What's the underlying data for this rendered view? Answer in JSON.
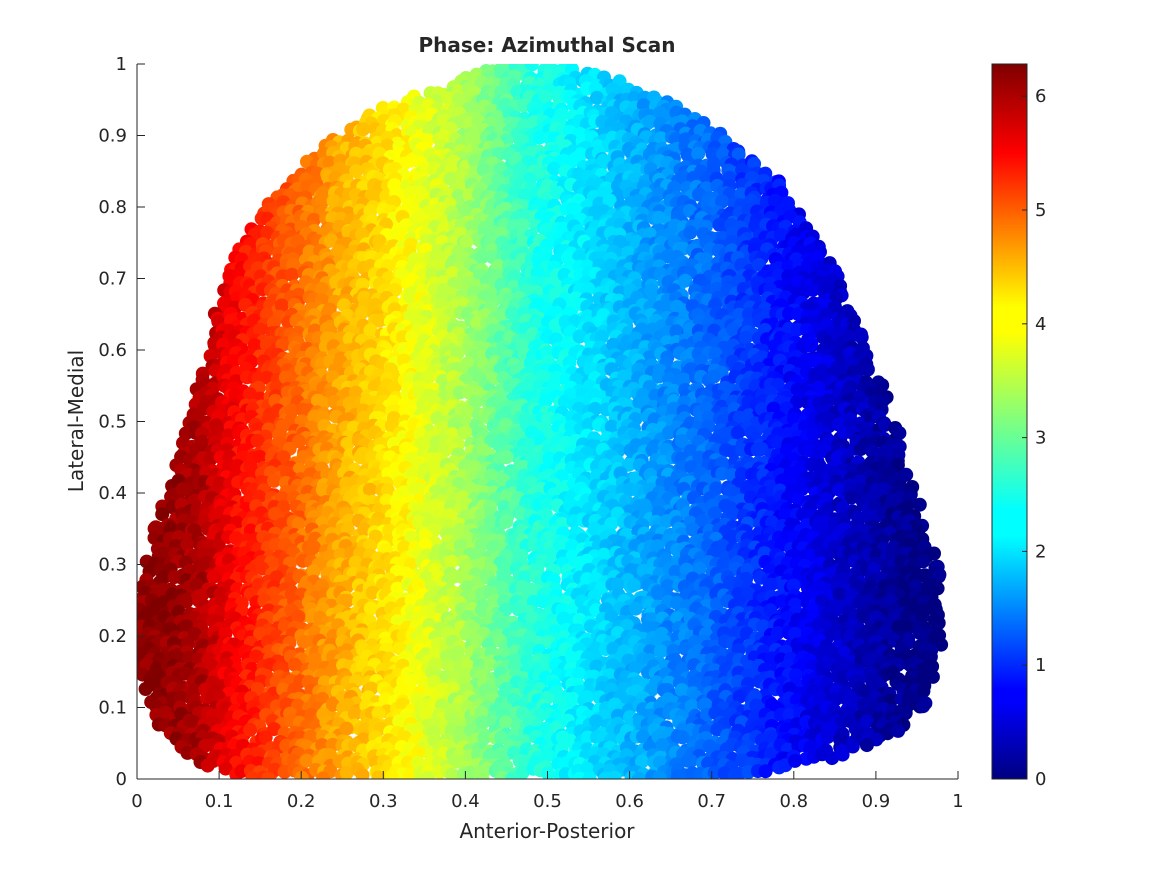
{
  "chart_data": {
    "type": "scatter",
    "title": "Phase: Azimuthal Scan",
    "xlabel": "Anterior-Posterior",
    "ylabel": "Lateral-Medial",
    "xlim": [
      0,
      1
    ],
    "ylim": [
      0,
      1
    ],
    "xticks": [
      "0",
      "0.1",
      "0.2",
      "0.3",
      "0.4",
      "0.5",
      "0.6",
      "0.7",
      "0.8",
      "0.9",
      "1"
    ],
    "yticks": [
      "0",
      "0.1",
      "0.2",
      "0.3",
      "0.4",
      "0.5",
      "0.6",
      "0.7",
      "0.8",
      "0.9",
      "1"
    ],
    "colormap": "jet",
    "colorbar": {
      "range": [
        0,
        6.2832
      ],
      "ticks": [
        "0",
        "1",
        "2",
        "3",
        "4",
        "5",
        "6"
      ]
    },
    "grid": false,
    "marker": "filled circle",
    "description_of_data": "Dense point cloud filling a dome-shaped region; point color (phase) varies smoothly from ~2π at x≈0.05 through ~π/2·… down to ~0 at x≈0.95.",
    "boundary": {
      "x_left_top": [
        [
          0.0,
          0.15
        ],
        [
          0.0,
          0.25
        ],
        [
          0.02,
          0.35
        ],
        [
          0.05,
          0.45
        ],
        [
          0.08,
          0.58
        ],
        [
          0.1,
          0.68
        ],
        [
          0.14,
          0.78
        ],
        [
          0.2,
          0.86
        ],
        [
          0.28,
          0.93
        ],
        [
          0.37,
          0.97
        ],
        [
          0.45,
          1.0
        ],
        [
          0.52,
          1.0
        ],
        [
          0.58,
          0.98
        ],
        [
          0.65,
          0.95
        ],
        [
          0.72,
          0.9
        ],
        [
          0.79,
          0.83
        ],
        [
          0.84,
          0.74
        ],
        [
          0.88,
          0.63
        ],
        [
          0.92,
          0.52
        ],
        [
          0.95,
          0.4
        ],
        [
          0.98,
          0.28
        ],
        [
          0.98,
          0.18
        ],
        [
          0.96,
          0.1
        ],
        [
          0.92,
          0.06
        ],
        [
          0.85,
          0.03
        ],
        [
          0.78,
          0.01
        ],
        [
          0.7,
          0.0
        ],
        [
          0.6,
          0.0
        ],
        [
          0.5,
          0.0
        ],
        [
          0.4,
          0.0
        ],
        [
          0.3,
          0.0
        ],
        [
          0.2,
          0.0
        ],
        [
          0.12,
          0.0
        ],
        [
          0.06,
          0.03
        ],
        [
          0.02,
          0.08
        ]
      ]
    },
    "phase_vs_x": [
      [
        0.03,
        6.2
      ],
      [
        0.08,
        6.0
      ],
      [
        0.12,
        5.5
      ],
      [
        0.18,
        5.0
      ],
      [
        0.24,
        4.5
      ],
      [
        0.32,
        4.0
      ],
      [
        0.4,
        3.4
      ],
      [
        0.48,
        2.6
      ],
      [
        0.55,
        2.2
      ],
      [
        0.62,
        1.8
      ],
      [
        0.7,
        1.4
      ],
      [
        0.78,
        0.9
      ],
      [
        0.85,
        0.5
      ],
      [
        0.92,
        0.15
      ],
      [
        0.97,
        0.0
      ]
    ]
  }
}
